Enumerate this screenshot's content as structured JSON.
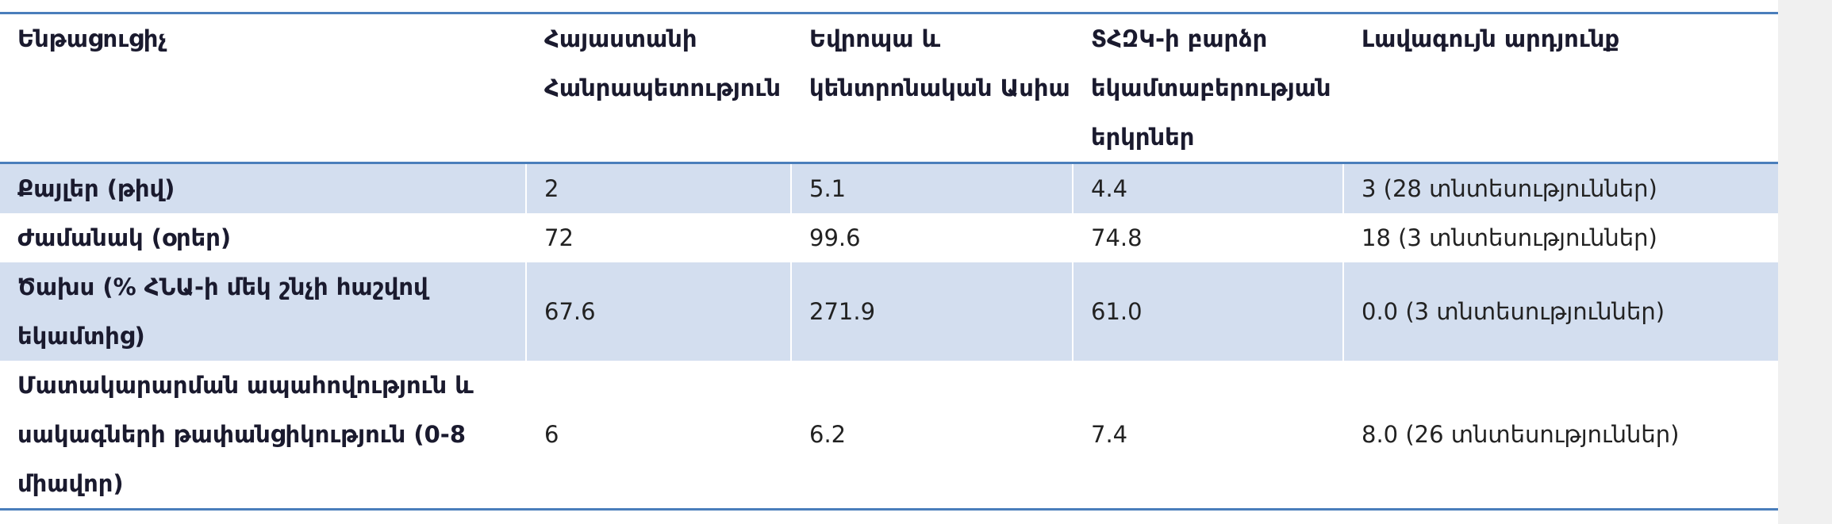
{
  "table": {
    "header": [
      "Ենթացուցիչ",
      "Հայաստանի Հանրապետություն",
      "Եվրոպա և կենտրոնական Ասիա",
      "ՏՀԶԿ-ի բարձր եկամտաբերության երկրներ",
      "Լավագույն արդյունք"
    ],
    "rows": [
      [
        "Քայլեր (թիվ)",
        "2",
        "5.1",
        "4.4",
        "3 (28 տնտեսություններ)"
      ],
      [
        "Ժամանակ (օրեր)",
        "72",
        "99.6",
        "74.8",
        "18 (3 տնտեսություններ)"
      ],
      [
        "Ծախս (% ՀՆԱ-ի մեկ շնչի հաշվով եկամտից)",
        "67.6",
        "271.9",
        "61.0",
        "0.0 (3 տնտեսություններ)"
      ],
      [
        "Մատակարարման ապահովություն և սակագների թափանցիկություն (0-8 միավոր)",
        "6",
        "6.2",
        "7.4",
        "8.0 (26 տնտեսություններ)"
      ]
    ]
  }
}
